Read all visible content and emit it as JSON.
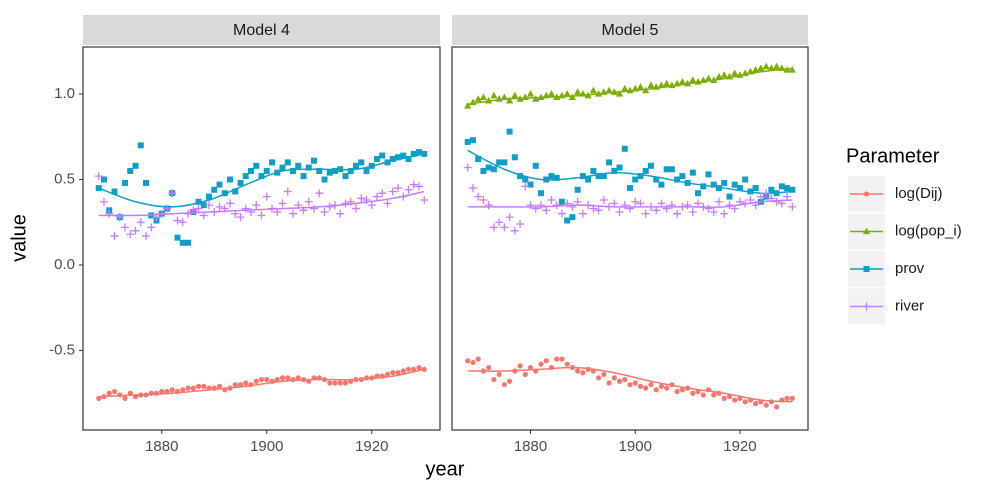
{
  "x_label": "year",
  "y_label": "value",
  "legend_title": "Parameter",
  "chart_data": [
    {
      "type": "scatter",
      "title": "Model 4",
      "xlim": [
        1865,
        1933
      ],
      "ylim": [
        -0.965,
        1.275
      ],
      "xticks": [
        1880,
        1900,
        1920
      ],
      "yticks": [
        -0.5,
        {
          "value": 0,
          "label": "0.0"
        },
        0.5,
        {
          "value": 1,
          "label": "1.0"
        }
      ],
      "x": [
        1868,
        1869,
        1870,
        1871,
        1872,
        1873,
        1874,
        1875,
        1876,
        1877,
        1878,
        1879,
        1880,
        1881,
        1882,
        1883,
        1884,
        1885,
        1886,
        1887,
        1888,
        1889,
        1890,
        1891,
        1892,
        1893,
        1894,
        1895,
        1896,
        1897,
        1898,
        1899,
        1900,
        1901,
        1902,
        1903,
        1904,
        1905,
        1906,
        1907,
        1908,
        1909,
        1910,
        1911,
        1912,
        1913,
        1914,
        1915,
        1916,
        1917,
        1918,
        1919,
        1920,
        1921,
        1922,
        1923,
        1924,
        1925,
        1926,
        1927,
        1928,
        1929,
        1930
      ],
      "smooth_x": [
        1868,
        1875,
        1882,
        1889,
        1896,
        1903,
        1910,
        1917,
        1924,
        1930
      ],
      "series": [
        {
          "color": "#f8766d",
          "marker": "circle",
          "values": [
            -0.78,
            -0.77,
            -0.75,
            -0.74,
            -0.76,
            -0.78,
            -0.75,
            -0.77,
            -0.76,
            -0.76,
            -0.75,
            -0.75,
            -0.74,
            -0.74,
            -0.73,
            -0.74,
            -0.73,
            -0.72,
            -0.72,
            -0.71,
            -0.71,
            -0.72,
            -0.72,
            -0.71,
            -0.73,
            -0.72,
            -0.7,
            -0.7,
            -0.69,
            -0.7,
            -0.68,
            -0.67,
            -0.67,
            -0.68,
            -0.67,
            -0.66,
            -0.66,
            -0.67,
            -0.66,
            -0.67,
            -0.68,
            -0.66,
            -0.66,
            -0.67,
            -0.69,
            -0.69,
            -0.69,
            -0.69,
            -0.68,
            -0.67,
            -0.67,
            -0.66,
            -0.66,
            -0.65,
            -0.65,
            -0.64,
            -0.63,
            -0.63,
            -0.62,
            -0.61,
            -0.61,
            -0.6,
            -0.61
          ],
          "smooth": [
            -0.77,
            -0.76,
            -0.75,
            -0.73,
            -0.71,
            -0.68,
            -0.67,
            -0.67,
            -0.65,
            -0.61
          ]
        },
        {
          "color": "#0f9ec6",
          "marker": "square",
          "values": [
            0.45,
            0.5,
            0.32,
            0.43,
            0.28,
            0.48,
            0.55,
            0.58,
            0.7,
            0.48,
            0.29,
            0.26,
            0.3,
            0.33,
            0.42,
            0.16,
            0.13,
            0.13,
            0.31,
            0.37,
            0.35,
            0.4,
            0.44,
            0.47,
            0.42,
            0.5,
            0.43,
            0.48,
            0.52,
            0.55,
            0.58,
            0.52,
            0.55,
            0.6,
            0.54,
            0.57,
            0.6,
            0.55,
            0.58,
            0.52,
            0.57,
            0.61,
            0.55,
            0.5,
            0.54,
            0.55,
            0.56,
            0.52,
            0.55,
            0.58,
            0.6,
            0.55,
            0.58,
            0.62,
            0.64,
            0.6,
            0.62,
            0.63,
            0.64,
            0.62,
            0.65,
            0.66,
            0.65
          ],
          "smooth": [
            0.45,
            0.37,
            0.34,
            0.38,
            0.47,
            0.55,
            0.56,
            0.56,
            0.61,
            0.65
          ]
        },
        {
          "color": "#c77cff",
          "marker": "plus",
          "values": [
            0.52,
            0.37,
            0.3,
            0.17,
            0.28,
            0.22,
            0.18,
            0.2,
            0.25,
            0.17,
            0.22,
            0.28,
            0.3,
            0.33,
            0.42,
            0.26,
            0.25,
            0.3,
            0.32,
            0.33,
            0.29,
            0.35,
            0.31,
            0.34,
            0.33,
            0.36,
            0.3,
            0.28,
            0.33,
            0.31,
            0.35,
            0.29,
            0.4,
            0.33,
            0.31,
            0.36,
            0.43,
            0.3,
            0.35,
            0.32,
            0.37,
            0.33,
            0.42,
            0.31,
            0.34,
            0.35,
            0.3,
            0.36,
            0.37,
            0.33,
            0.39,
            0.38,
            0.35,
            0.4,
            0.42,
            0.36,
            0.43,
            0.45,
            0.4,
            0.44,
            0.47,
            0.46,
            0.38
          ],
          "smooth": [
            0.29,
            0.29,
            0.3,
            0.31,
            0.32,
            0.33,
            0.34,
            0.36,
            0.39,
            0.43
          ]
        }
      ]
    },
    {
      "type": "scatter",
      "title": "Model 5",
      "xlim": [
        1865,
        1933
      ],
      "ylim": [
        -0.965,
        1.275
      ],
      "xticks": [
        1880,
        1900,
        1920
      ],
      "x": [
        1868,
        1869,
        1870,
        1871,
        1872,
        1873,
        1874,
        1875,
        1876,
        1877,
        1878,
        1879,
        1880,
        1881,
        1882,
        1883,
        1884,
        1885,
        1886,
        1887,
        1888,
        1889,
        1890,
        1891,
        1892,
        1893,
        1894,
        1895,
        1896,
        1897,
        1898,
        1899,
        1900,
        1901,
        1902,
        1903,
        1904,
        1905,
        1906,
        1907,
        1908,
        1909,
        1910,
        1911,
        1912,
        1913,
        1914,
        1915,
        1916,
        1917,
        1918,
        1919,
        1920,
        1921,
        1922,
        1923,
        1924,
        1925,
        1926,
        1927,
        1928,
        1929,
        1930
      ],
      "smooth_x": [
        1868,
        1875,
        1882,
        1889,
        1896,
        1903,
        1910,
        1917,
        1924,
        1930
      ],
      "series": [
        {
          "name": "log(Dij)",
          "color": "#f8766d",
          "marker": "circle",
          "values": [
            -0.56,
            -0.57,
            -0.55,
            -0.62,
            -0.6,
            -0.67,
            -0.64,
            -0.7,
            -0.68,
            -0.62,
            -0.59,
            -0.64,
            -0.6,
            -0.62,
            -0.58,
            -0.56,
            -0.6,
            -0.55,
            -0.55,
            -0.58,
            -0.6,
            -0.62,
            -0.63,
            -0.61,
            -0.62,
            -0.66,
            -0.64,
            -0.69,
            -0.66,
            -0.68,
            -0.67,
            -0.7,
            -0.69,
            -0.71,
            -0.72,
            -0.7,
            -0.73,
            -0.71,
            -0.72,
            -0.7,
            -0.74,
            -0.73,
            -0.72,
            -0.75,
            -0.74,
            -0.76,
            -0.73,
            -0.76,
            -0.75,
            -0.78,
            -0.77,
            -0.79,
            -0.78,
            -0.8,
            -0.79,
            -0.81,
            -0.8,
            -0.82,
            -0.8,
            -0.83,
            -0.79,
            -0.78,
            -0.78
          ],
          "smooth": [
            -0.62,
            -0.62,
            -0.61,
            -0.6,
            -0.63,
            -0.68,
            -0.72,
            -0.75,
            -0.79,
            -0.8
          ]
        },
        {
          "name": "log(pop_i)",
          "color": "#7cae00",
          "marker": "triangle",
          "values": [
            0.93,
            0.95,
            0.97,
            0.98,
            0.96,
            0.99,
            0.97,
            0.98,
            0.96,
            0.99,
            0.97,
            0.98,
            1.0,
            0.97,
            0.98,
            0.99,
            1.0,
            0.98,
            0.99,
            1.0,
            0.98,
            1.01,
            1.0,
            0.99,
            1.02,
            1.0,
            1.01,
            1.02,
            1.01,
            1.0,
            1.03,
            1.02,
            1.03,
            1.04,
            1.02,
            1.05,
            1.04,
            1.05,
            1.06,
            1.05,
            1.06,
            1.07,
            1.06,
            1.08,
            1.07,
            1.08,
            1.09,
            1.08,
            1.1,
            1.11,
            1.1,
            1.12,
            1.11,
            1.12,
            1.13,
            1.14,
            1.15,
            1.16,
            1.15,
            1.16,
            1.15,
            1.14,
            1.14
          ],
          "smooth": [
            0.94,
            0.97,
            0.98,
            0.99,
            1.01,
            1.03,
            1.06,
            1.09,
            1.13,
            1.15
          ]
        },
        {
          "name": "prov",
          "color": "#0f9ec6",
          "marker": "square",
          "values": [
            0.72,
            0.73,
            0.62,
            0.55,
            0.57,
            0.56,
            0.6,
            0.6,
            0.78,
            0.63,
            0.52,
            0.5,
            0.47,
            0.58,
            0.42,
            0.5,
            0.52,
            0.51,
            0.37,
            0.26,
            0.28,
            0.44,
            0.52,
            0.5,
            0.55,
            0.52,
            0.52,
            0.6,
            0.55,
            0.57,
            0.68,
            0.45,
            0.5,
            0.52,
            0.55,
            0.58,
            0.5,
            0.47,
            0.56,
            0.56,
            0.5,
            0.52,
            0.48,
            0.54,
            0.42,
            0.46,
            0.53,
            0.47,
            0.45,
            0.48,
            0.4,
            0.47,
            0.45,
            0.5,
            0.43,
            0.45,
            0.37,
            0.4,
            0.44,
            0.42,
            0.46,
            0.45,
            0.44
          ],
          "smooth": [
            0.67,
            0.56,
            0.5,
            0.51,
            0.54,
            0.52,
            0.48,
            0.45,
            0.42,
            0.43
          ]
        },
        {
          "name": "river",
          "color": "#c77cff",
          "marker": "plus",
          "values": [
            0.57,
            0.45,
            0.4,
            0.38,
            0.35,
            0.22,
            0.25,
            0.22,
            0.28,
            0.2,
            0.24,
            0.46,
            0.35,
            0.33,
            0.35,
            0.32,
            0.38,
            0.35,
            0.3,
            0.36,
            0.34,
            0.37,
            0.3,
            0.35,
            0.33,
            0.32,
            0.38,
            0.34,
            0.36,
            0.31,
            0.35,
            0.33,
            0.37,
            0.36,
            0.3,
            0.34,
            0.32,
            0.36,
            0.33,
            0.35,
            0.3,
            0.34,
            0.35,
            0.31,
            0.36,
            0.34,
            0.33,
            0.31,
            0.37,
            0.3,
            0.35,
            0.33,
            0.37,
            0.36,
            0.38,
            0.35,
            0.4,
            0.42,
            0.39,
            0.37,
            0.36,
            0.4,
            0.34
          ],
          "smooth": [
            0.34,
            0.34,
            0.34,
            0.35,
            0.34,
            0.34,
            0.34,
            0.34,
            0.37,
            0.38
          ]
        }
      ]
    }
  ]
}
